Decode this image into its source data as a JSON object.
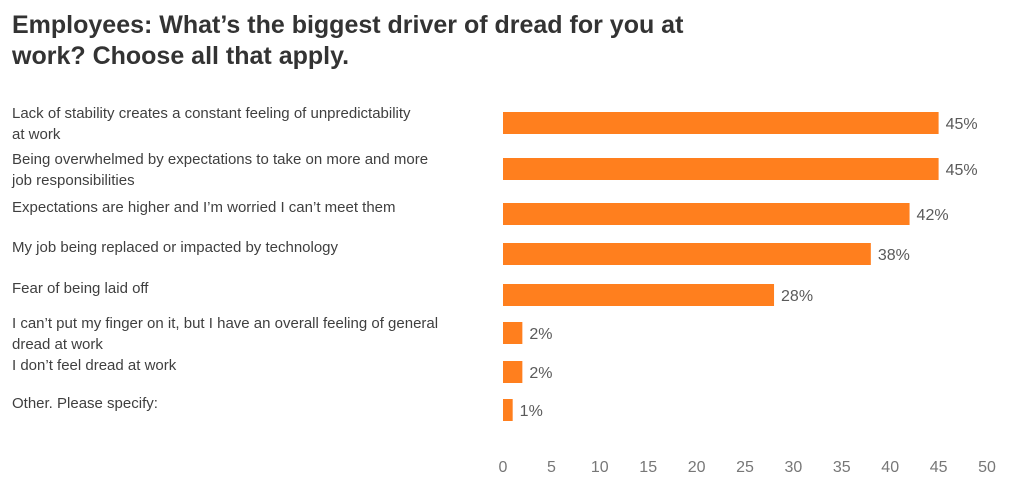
{
  "chart_data": {
    "type": "bar",
    "orientation": "horizontal",
    "title": "Employees: What’s the biggest driver of dread for you at work? Choose all that apply.",
    "categories": [
      "Lack of stability creates a constant feeling of unpredictability at work",
      "Being overwhelmed by expectations to take on more and more job responsibilities",
      "Expectations are higher and I’m worried I can’t meet them",
      "My job being replaced or impacted by technology",
      "Fear of being laid off",
      "I can’t put my finger on it, but I have an overall feeling of general dread at work",
      "I don’t feel dread at work",
      "Other. Please specify:"
    ],
    "category_lines": [
      [
        "Lack of stability creates a constant feeling of unpredictability",
        "at work"
      ],
      [
        "Being overwhelmed by expectations to take on more and more",
        "job responsibilities"
      ],
      [
        "Expectations are higher and I’m worried I can’t meet them"
      ],
      [
        "My job being replaced or impacted by technology"
      ],
      [
        "Fear of being laid off"
      ],
      [
        "I can’t put my finger on it, but I have an overall feeling of general",
        "dread at work"
      ],
      [
        "I don’t feel dread at work"
      ],
      [
        "Other. Please specify:"
      ]
    ],
    "values": [
      45,
      45,
      42,
      38,
      28,
      2,
      2,
      1
    ],
    "value_labels": [
      "45%",
      "45%",
      "42%",
      "38%",
      "28%",
      "2%",
      "2%",
      "1%"
    ],
    "xlim": [
      0,
      50
    ],
    "xticks": [
      0,
      5,
      10,
      15,
      20,
      25,
      30,
      35,
      40,
      45,
      50
    ],
    "grid": false,
    "bar_color": "#FF7F1E"
  }
}
